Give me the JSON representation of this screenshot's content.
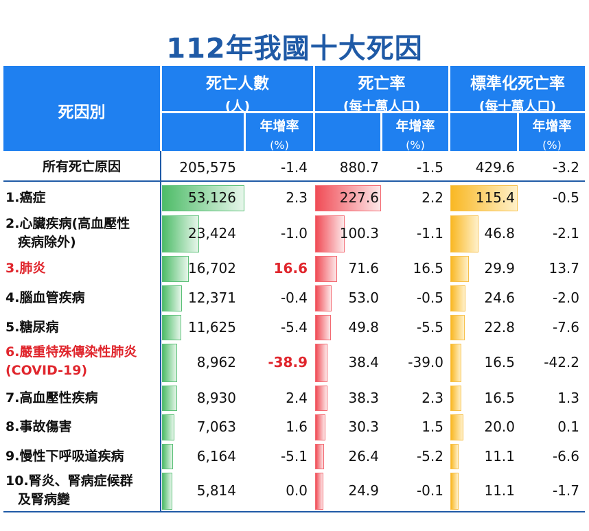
{
  "title": "112年我國十大死因",
  "headers": {
    "cause": "死因別",
    "deaths": "死亡人數",
    "deaths_unit": "(人)",
    "rate": "死亡率",
    "rate_unit": "(每十萬人口)",
    "std_rate": "標準化死亡率",
    "std_rate_unit": "(每十萬人口)",
    "change": "年增率",
    "change_unit": "(%)"
  },
  "total": {
    "label": "所有死亡原因",
    "deaths": "205,575",
    "deaths_change": "-1.4",
    "rate": "880.7",
    "rate_change": "-1.5",
    "std_rate": "429.6",
    "std_change": "-3.2"
  },
  "colors": {
    "header": "#1f80f0",
    "title": "#1f5aa6",
    "highlight": "#e0262d",
    "deaths_bar": "#4ebc68",
    "rate_bar": "#f04c56",
    "std_bar": "#f9b824"
  },
  "chart_data": {
    "type": "table",
    "columns": [
      "死因別",
      "死亡人數(人)",
      "年增率(%)",
      "死亡率(每十萬人口)",
      "年增率(%)",
      "標準化死亡率(每十萬人口)",
      "年增率(%)"
    ],
    "rows": [
      {
        "label": "1.癌症",
        "label2": "",
        "red": false,
        "deaths": "53,126",
        "deaths_v": 53126,
        "deaths_change": "2.3",
        "deaths_change_red": false,
        "rate": "227.6",
        "rate_v": 227.6,
        "rate_change": "2.2",
        "std_rate": "115.4",
        "std_v": 115.4,
        "std_change": "-0.5"
      },
      {
        "label": "2.心臟疾病(高血壓性",
        "label2": "疾病除外)",
        "red": false,
        "deaths": "23,424",
        "deaths_v": 23424,
        "deaths_change": "-1.0",
        "deaths_change_red": false,
        "rate": "100.3",
        "rate_v": 100.3,
        "rate_change": "-1.1",
        "std_rate": "46.8",
        "std_v": 46.8,
        "std_change": "-2.1"
      },
      {
        "label": "3.肺炎",
        "label2": "",
        "red": true,
        "deaths": "16,702",
        "deaths_v": 16702,
        "deaths_change": "16.6",
        "deaths_change_red": true,
        "rate": "71.6",
        "rate_v": 71.6,
        "rate_change": "16.5",
        "std_rate": "29.9",
        "std_v": 29.9,
        "std_change": "13.7"
      },
      {
        "label": "4.腦血管疾病",
        "label2": "",
        "red": false,
        "deaths": "12,371",
        "deaths_v": 12371,
        "deaths_change": "-0.4",
        "deaths_change_red": false,
        "rate": "53.0",
        "rate_v": 53.0,
        "rate_change": "-0.5",
        "std_rate": "24.6",
        "std_v": 24.6,
        "std_change": "-2.0"
      },
      {
        "label": "5.糖尿病",
        "label2": "",
        "red": false,
        "deaths": "11,625",
        "deaths_v": 11625,
        "deaths_change": "-5.4",
        "deaths_change_red": false,
        "rate": "49.8",
        "rate_v": 49.8,
        "rate_change": "-5.5",
        "std_rate": "22.8",
        "std_v": 22.8,
        "std_change": "-7.6"
      },
      {
        "label": "6.嚴重特殊傳染性肺炎",
        "label2": "(COVID-19)",
        "red": true,
        "deaths": "8,962",
        "deaths_v": 8962,
        "deaths_change": "-38.9",
        "deaths_change_red": true,
        "rate": "38.4",
        "rate_v": 38.4,
        "rate_change": "-39.0",
        "std_rate": "16.5",
        "std_v": 16.5,
        "std_change": "-42.2"
      },
      {
        "label": "7.高血壓性疾病",
        "label2": "",
        "red": false,
        "deaths": "8,930",
        "deaths_v": 8930,
        "deaths_change": "2.4",
        "deaths_change_red": false,
        "rate": "38.3",
        "rate_v": 38.3,
        "rate_change": "2.3",
        "std_rate": "16.5",
        "std_v": 16.5,
        "std_change": "1.3"
      },
      {
        "label": "8.事故傷害",
        "label2": "",
        "red": false,
        "deaths": "7,063",
        "deaths_v": 7063,
        "deaths_change": "1.6",
        "deaths_change_red": false,
        "rate": "30.3",
        "rate_v": 30.3,
        "rate_change": "1.5",
        "std_rate": "20.0",
        "std_v": 20.0,
        "std_change": "0.1"
      },
      {
        "label": "9.慢性下呼吸道疾病",
        "label2": "",
        "red": false,
        "deaths": "6,164",
        "deaths_v": 6164,
        "deaths_change": "-5.1",
        "deaths_change_red": false,
        "rate": "26.4",
        "rate_v": 26.4,
        "rate_change": "-5.2",
        "std_rate": "11.1",
        "std_v": 11.1,
        "std_change": "-6.6"
      },
      {
        "label": "10.腎炎、腎病症候群",
        "label2": "及腎病變",
        "red": false,
        "deaths": "5,814",
        "deaths_v": 5814,
        "deaths_change": "0.0",
        "deaths_change_red": false,
        "rate": "24.9",
        "rate_v": 24.9,
        "rate_change": "-0.1",
        "std_rate": "11.1",
        "std_v": 11.1,
        "std_change": "-1.7"
      }
    ]
  }
}
